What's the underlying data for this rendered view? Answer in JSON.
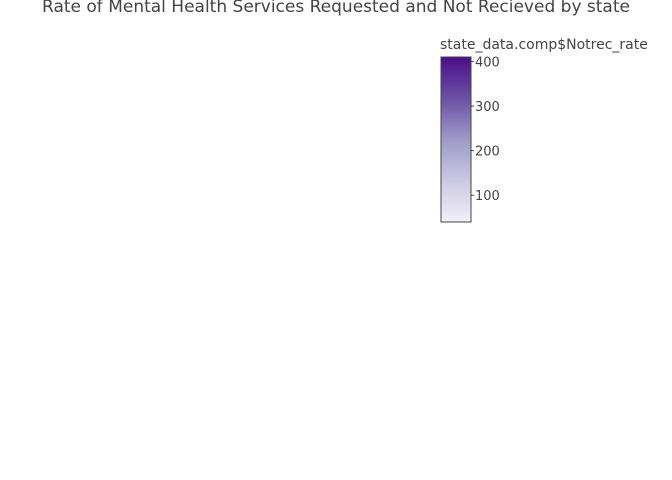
{
  "chart_data": {
    "type": "choropleth",
    "title": "Rate of Mental Health Services Requested and Not Recieved by state",
    "colorbar": {
      "title": "state_data.comp$Notrec_rate",
      "ticks": [
        100,
        200,
        300,
        400
      ],
      "tick_labels": [
        "100",
        "200",
        "300",
        "400"
      ],
      "range": [
        40,
        410
      ],
      "colorscale": [
        "#f2f0f7",
        "#cbc9e2",
        "#9e9ac8",
        "#6a51a3",
        "#4b0e8a"
      ]
    }
  }
}
